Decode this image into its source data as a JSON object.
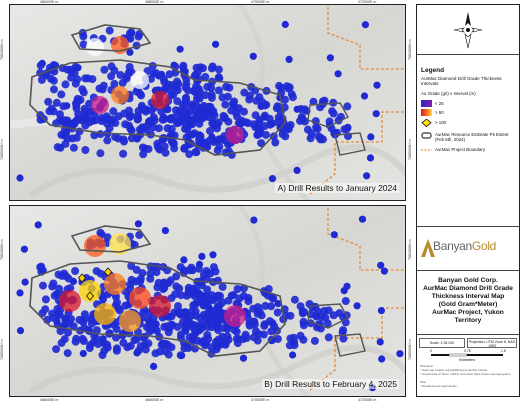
{
  "panels": [
    {
      "caption": "A) Drill Results to January 2024"
    },
    {
      "caption": "B) Drill Results to February 4, 2025"
    }
  ],
  "grid": {
    "easting_labels": [
      "466000E m",
      "468000E m",
      "470000E m",
      "472000E m"
    ],
    "northing_labels_a": [
      "7082000N m",
      "7080000N m"
    ],
    "northing_labels_b": [
      "7082000N m",
      "7080000N m"
    ]
  },
  "legend": {
    "title": "Legend",
    "subtitle": "AurMac Diamond Drill Grade Thickness Intervals",
    "units": "Au Grade (g/t)  x Interval (m)",
    "items": [
      {
        "label": "< 25",
        "symbol": "heat-gradient"
      },
      {
        "label": "> 50",
        "symbol": "heat-gradient"
      },
      {
        "label": "> 100",
        "symbol": "yellow-diamond"
      },
      {
        "label": "AurMac Resource Estimate Pit Extent (Feb 6th, 2024)",
        "symbol": "grey-outline"
      },
      {
        "label": "AurMac Project Boundary",
        "symbol": "orange-dashed-line"
      }
    ]
  },
  "logo": {
    "part1": "Banyan",
    "part2": "Gold"
  },
  "title_block": {
    "lines": [
      "Banyan Gold Corp.",
      "AurMac Diamond Drill Grade",
      "Thickness Interval Map",
      "(Gold Gram*Meter)",
      "AurMac Project, Yukon",
      "Territory"
    ]
  },
  "scale_block": {
    "scale": "Scale: 1:35,000",
    "projection": "Projection: UTM Zone 8, NAD 1983",
    "bar_labels": [
      "0",
      "0.75",
      "1.5"
    ],
    "bar_units": "Kilometers"
  },
  "notes": {
    "lines": [
      "Reference:",
      "* Heat map created using ESRI kernel density method",
      "* Government of Yukon. (2024). GeoYukon https://yukon.ca/en/geoyukon",
      "Note:",
      "* All features are approximate."
    ]
  },
  "colors": {
    "boundary": "#e98a3a",
    "pit_outline": "#555555",
    "hole": "#1f2ad2",
    "hot": "#ffd400"
  }
}
